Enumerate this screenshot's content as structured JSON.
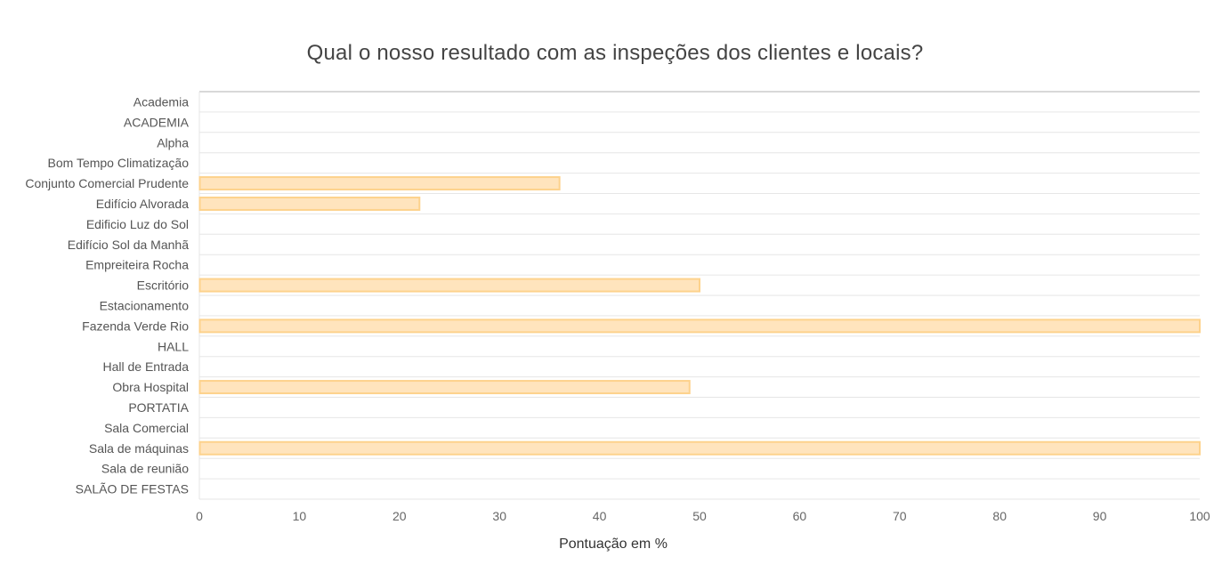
{
  "chart_data": {
    "type": "bar",
    "orientation": "horizontal",
    "title": "Qual o nosso resultado com as inspeções dos clientes e locais?",
    "xlabel": "Pontuação em %",
    "ylabel": "",
    "xlim": [
      0,
      100
    ],
    "x_ticks": [
      0,
      10,
      20,
      30,
      40,
      50,
      60,
      70,
      80,
      90,
      100
    ],
    "grid": true,
    "categories": [
      "Academia",
      "ACADEMIA",
      "Alpha",
      "Bom Tempo Climatização",
      "Conjunto Comercial Prudente",
      "Edifício Alvorada",
      "Edificio Luz do Sol",
      "Edifício Sol da Manhã",
      "Empreiteira Rocha",
      "Escritório",
      "Estacionamento",
      "Fazenda Verde Rio",
      "HALL",
      "Hall de Entrada",
      "Obra Hospital",
      "PORTATIA",
      "Sala Comercial",
      "Sala de máquinas",
      "Sala de reunião",
      "SALÃO DE FESTAS"
    ],
    "values": [
      0,
      0,
      0,
      0,
      36,
      22,
      0,
      0,
      0,
      50,
      0,
      100,
      0,
      0,
      49,
      0,
      0,
      100,
      0,
      0
    ],
    "bar_fill": "#ffe4bd",
    "bar_stroke": "#fdd28c"
  }
}
